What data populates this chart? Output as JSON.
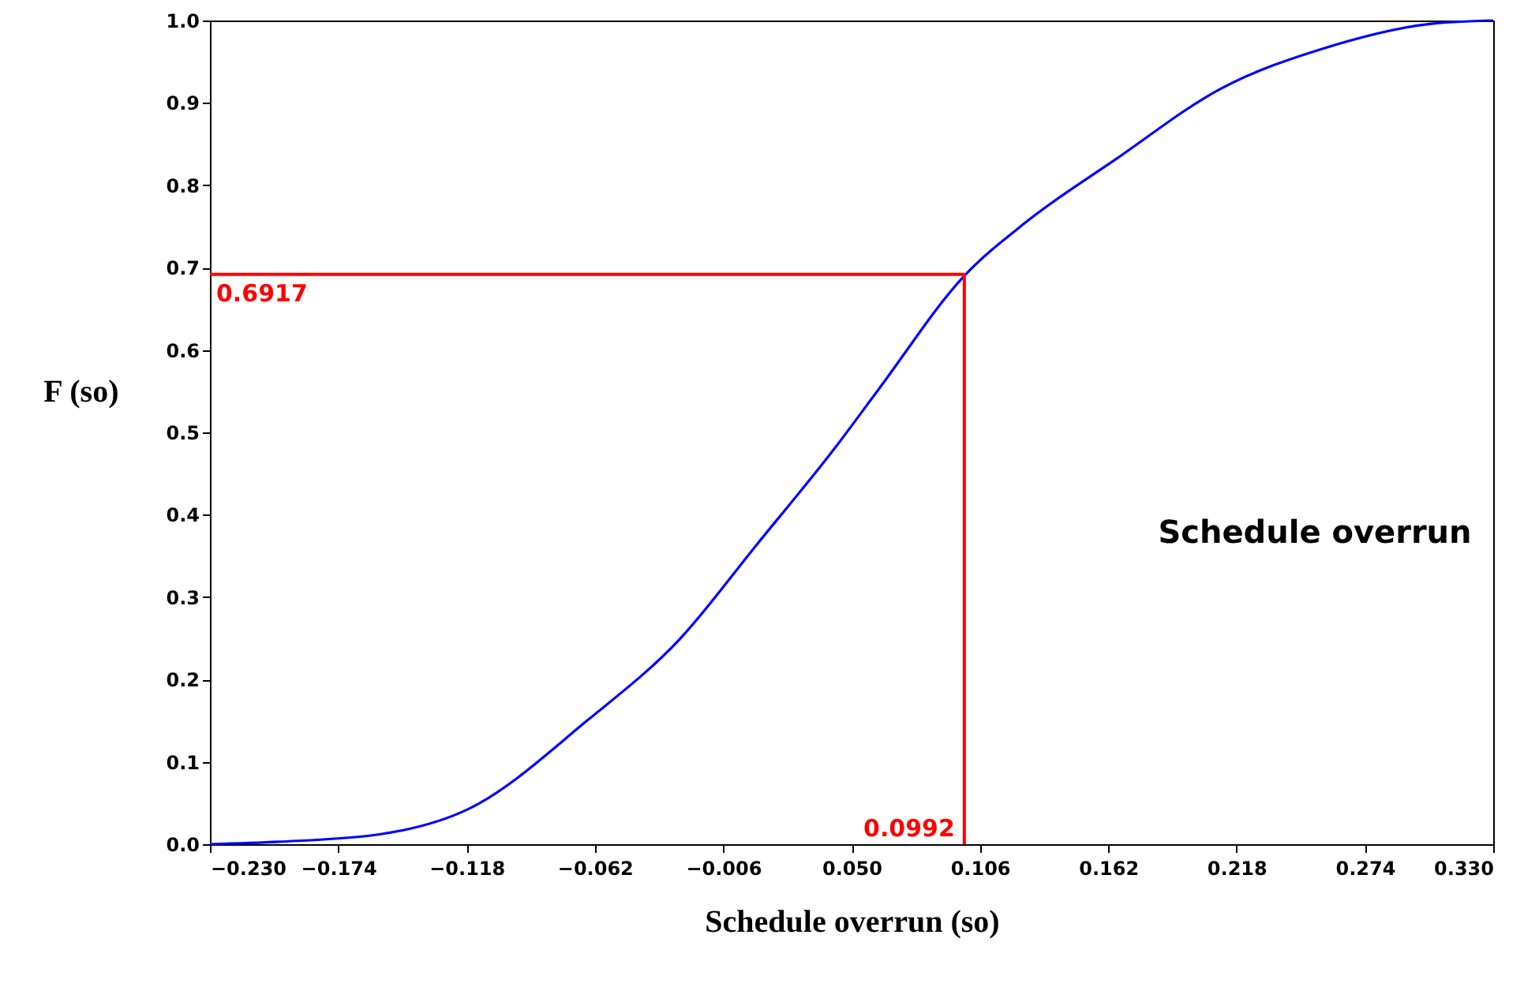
{
  "chart_data": {
    "type": "line",
    "xlabel": "Schedule overrun (so)",
    "ylabel": "F (so)",
    "annotations": [
      "Schedule overrun"
    ],
    "series": [
      {
        "color": "#0000ff",
        "x": [
          -0.23,
          -0.2,
          -0.156,
          -0.117,
          -0.065,
          -0.025,
          0.009,
          0.043,
          0.062,
          0.0992,
          0.126,
          0.165,
          0.211,
          0.257,
          0.303,
          0.33
        ],
        "values": [
          0,
          0.003,
          0.012,
          0.043,
          0.151,
          0.249,
          0.365,
          0.482,
          0.553,
          0.69,
          0.755,
          0.831,
          0.917,
          0.967,
          0.996,
          1.0
        ]
      }
    ],
    "ref_lines": [
      {
        "axis": "y",
        "value": 0.6917,
        "label": "0.6917",
        "color": "#ff0000"
      },
      {
        "axis": "x",
        "value": 0.0992,
        "label": "0.0992",
        "color": "#ff0000"
      }
    ],
    "xlim": [
      -0.23,
      0.33
    ],
    "xticks": [
      {
        "value": -0.23,
        "label": "−0.230"
      },
      {
        "value": -0.174,
        "label": "−0.174"
      },
      {
        "value": -0.118,
        "label": "−0.118"
      },
      {
        "value": -0.062,
        "label": "−0.062"
      },
      {
        "value": -0.006,
        "label": "−0.006"
      },
      {
        "value": 0.05,
        "label": "0.050"
      },
      {
        "value": 0.106,
        "label": "0.106"
      },
      {
        "value": 0.162,
        "label": "0.162"
      },
      {
        "value": 0.218,
        "label": "0.218"
      },
      {
        "value": 0.274,
        "label": "0.274"
      },
      {
        "value": 0.33,
        "label": "0.330"
      }
    ],
    "ylim": [
      0,
      1.0
    ],
    "yticks": [
      {
        "value": 0,
        "label": "0.0"
      },
      {
        "value": 0.1,
        "label": "0.1"
      },
      {
        "value": 0.2,
        "label": "0.2"
      },
      {
        "value": 0.3,
        "label": "0.3"
      },
      {
        "value": 0.4,
        "label": "0.4"
      },
      {
        "value": 0.5,
        "label": "0.5"
      },
      {
        "value": 0.6,
        "label": "0.6"
      },
      {
        "value": 0.7,
        "label": "0.7"
      },
      {
        "value": 0.8,
        "label": "0.8"
      },
      {
        "value": 0.9,
        "label": "0.9"
      },
      {
        "value": 1.0,
        "label": "1.0"
      }
    ],
    "grid": false,
    "marker": "none",
    "line_style": "solid"
  }
}
